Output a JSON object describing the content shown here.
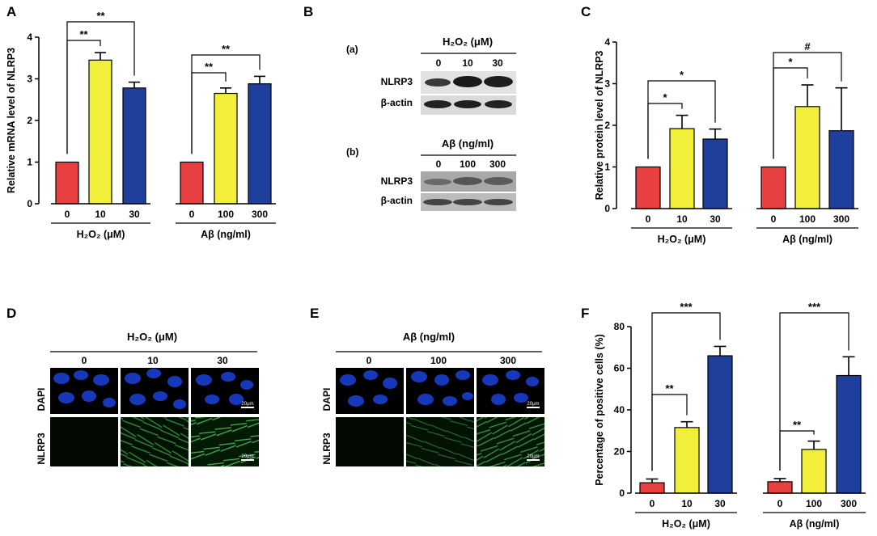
{
  "colors": {
    "red": "#e84040",
    "yellow": "#f2ef3a",
    "blue": "#1f3f9c"
  },
  "panelA": {
    "letter": "A",
    "ylabel": "Relative mRNA level of NLRP3",
    "yticks": [
      "0",
      "1",
      "2",
      "3",
      "4"
    ],
    "groups": [
      {
        "label": "H₂O₂ (μM)",
        "ticks": [
          "0",
          "10",
          "30"
        ]
      },
      {
        "label": "Aβ (ng/ml)",
        "ticks": [
          "0",
          "100",
          "300"
        ]
      }
    ],
    "sig": [
      "**",
      "**",
      "**",
      "**"
    ]
  },
  "panelB": {
    "letter": "B",
    "a": {
      "tag": "(a)",
      "header": "H₂O₂ (μM)",
      "lanes": [
        "0",
        "10",
        "30"
      ],
      "rows": [
        "NLRP3",
        "β-actin"
      ]
    },
    "b": {
      "tag": "(b)",
      "header": "Aβ (ng/ml)",
      "lanes": [
        "0",
        "100",
        "300"
      ],
      "rows": [
        "NLRP3",
        "β-actin"
      ]
    }
  },
  "panelC": {
    "letter": "C",
    "ylabel": "Relative protein level of NLRP3",
    "yticks": [
      "0",
      "1",
      "2",
      "3",
      "4"
    ],
    "groups": [
      {
        "label": "H₂O₂ (μM)",
        "ticks": [
          "0",
          "10",
          "30"
        ]
      },
      {
        "label": "Aβ (ng/ml)",
        "ticks": [
          "0",
          "100",
          "300"
        ]
      }
    ],
    "sig": [
      "*",
      "*",
      "*",
      "#"
    ]
  },
  "panelD": {
    "letter": "D",
    "header": "H₂O₂ (μM)",
    "cols": [
      "0",
      "10",
      "30"
    ],
    "rows": [
      "DAPI",
      "NLRP3"
    ],
    "scale": "20μm"
  },
  "panelE": {
    "letter": "E",
    "header": "Aβ (ng/ml)",
    "cols": [
      "0",
      "100",
      "300"
    ],
    "rows": [
      "DAPI",
      "NLRP3"
    ],
    "scale": "20μm"
  },
  "panelF": {
    "letter": "F",
    "ylabel": "Percentage of positive cells (%)",
    "yticks": [
      "0",
      "20",
      "40",
      "60",
      "80"
    ],
    "groups": [
      {
        "label": "H₂O₂ (μM)",
        "ticks": [
          "0",
          "10",
          "30"
        ]
      },
      {
        "label": "Aβ (ng/ml)",
        "ticks": [
          "0",
          "100",
          "300"
        ]
      }
    ],
    "sig": [
      "**",
      "***",
      "**",
      "***"
    ]
  },
  "chart_data": [
    {
      "id": "A",
      "type": "bar",
      "ylabel": "Relative mRNA level of NLRP3",
      "ylim": [
        0,
        4
      ],
      "categories": [
        "0",
        "10",
        "30",
        "0",
        "100",
        "300"
      ],
      "values": [
        1.0,
        3.45,
        2.78,
        1.0,
        2.65,
        2.88
      ],
      "errors": [
        0,
        0.18,
        0.14,
        0,
        0.13,
        0.18
      ]
    },
    {
      "id": "C",
      "type": "bar",
      "ylabel": "Relative protein level of NLRP3",
      "ylim": [
        0,
        4
      ],
      "categories": [
        "0",
        "10",
        "30",
        "0",
        "100",
        "300"
      ],
      "values": [
        1.0,
        1.92,
        1.67,
        1.0,
        2.45,
        1.87
      ],
      "errors": [
        0,
        0.32,
        0.24,
        0,
        0.52,
        1.03
      ]
    },
    {
      "id": "F",
      "type": "bar",
      "ylabel": "Percentage of positive cells (%)",
      "ylim": [
        0,
        80
      ],
      "categories": [
        "0",
        "10",
        "30",
        "0",
        "100",
        "300"
      ],
      "values": [
        5.0,
        31.5,
        66.0,
        5.5,
        21.0,
        56.5
      ],
      "errors": [
        1.8,
        2.8,
        4.5,
        1.5,
        4.0,
        9.0
      ]
    }
  ]
}
